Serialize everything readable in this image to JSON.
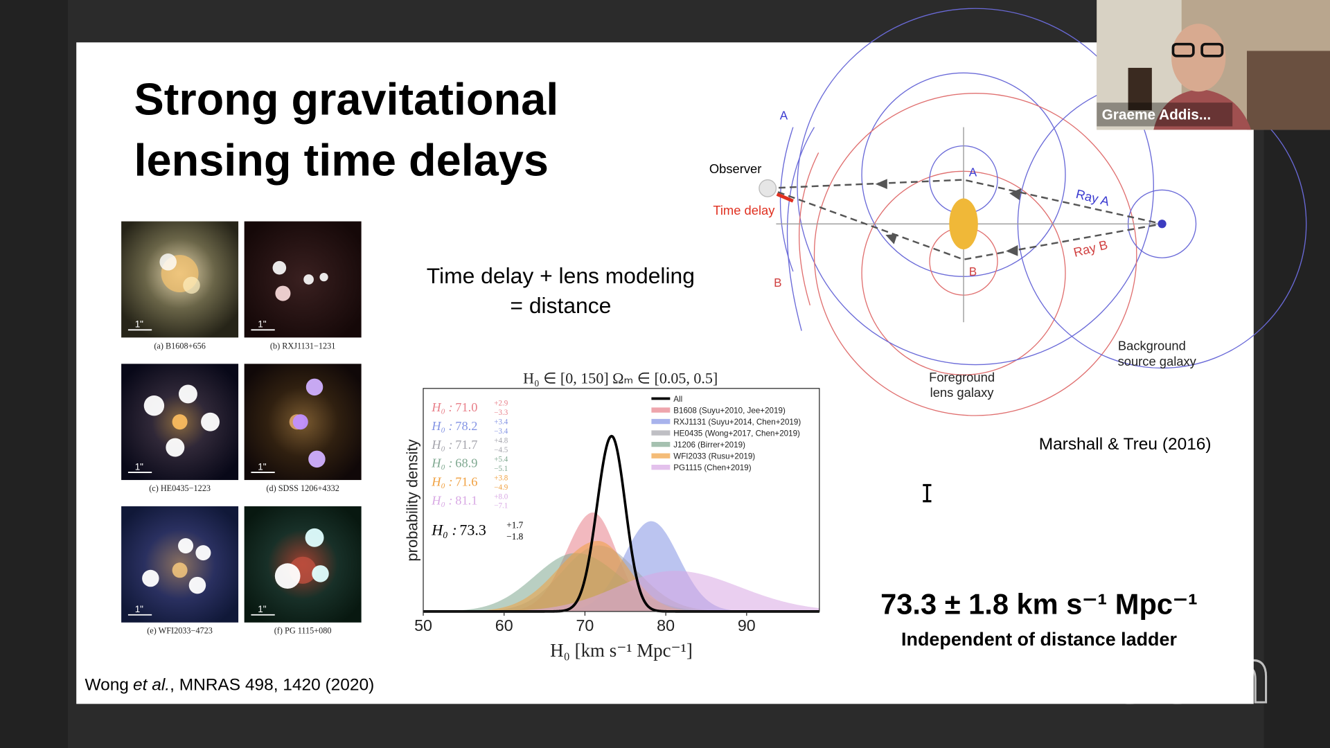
{
  "screen": {
    "presenter": "Graeme Addis...",
    "watermark": "zoom"
  },
  "slide": {
    "title_lines": [
      "Strong gravitational",
      "lensing time delays"
    ],
    "lens_images": [
      {
        "caption": "(a) B1608+656",
        "scale": "1\""
      },
      {
        "caption": "(b) RXJ1131−1231",
        "scale": "1\""
      },
      {
        "caption": "(c) HE0435−1223",
        "scale": "1\""
      },
      {
        "caption": "(d) SDSS 1206+4332",
        "scale": "1\""
      },
      {
        "caption": "(e) WFI2033−4723",
        "scale": "1\""
      },
      {
        "caption": "(f) PG 1115+080",
        "scale": "1\""
      }
    ],
    "equation_lines": [
      "Time delay + lens modeling",
      "= distance"
    ],
    "diagram": {
      "observer": "Observer",
      "time_delay": "Time delay",
      "outer_a": "A",
      "outer_b": "B",
      "image_a": "A",
      "image_b": "B",
      "ray_a": "Ray A",
      "ray_b": "Ray B",
      "lens": [
        "Foreground",
        "lens galaxy"
      ],
      "source": [
        "Background",
        "source galaxy"
      ],
      "credit": "Marshall & Treu (2016)"
    },
    "result": "73.3 ± 1.8 km s⁻¹ Mpc⁻¹",
    "result_note": "Independent of distance ladder",
    "citation": {
      "author": "Wong",
      "etal": "et al.",
      "rest": ", MNRAS 498, 1420 (2020)"
    }
  },
  "plot": {
    "type": "density",
    "title": "H₀ ∈ [0, 150]   Ωₘ ∈ [0.05, 0.5]",
    "xlabel": "H₀ [km s⁻¹ Mpc⁻¹]",
    "ylabel": "probability density",
    "h0_symbol": "H₀ :",
    "xlim": [
      50,
      99
    ],
    "ylim": [
      0,
      0.29
    ],
    "xticks": [
      50,
      60,
      70,
      80,
      90
    ],
    "series": [
      {
        "name": "All",
        "color": "#000000",
        "h0": {
          "value": 73.3,
          "label": "73.3"
        },
        "plus": {
          "value": 1.7,
          "label": "+1.7"
        },
        "minus": {
          "value": -1.8,
          "label": "−1.8"
        }
      },
      {
        "name": "B1608 (Suyu+2010, Jee+2019)",
        "color": "#e8808a",
        "h0": {
          "value": 71.0,
          "label": "71.0"
        },
        "plus": {
          "value": 2.9,
          "label": "+2.9"
        },
        "minus": {
          "value": -3.3,
          "label": "−3.3"
        }
      },
      {
        "name": "RXJ1131 (Suyu+2014, Chen+2019)",
        "color": "#8494e4",
        "h0": {
          "value": 78.2,
          "label": "78.2"
        },
        "plus": {
          "value": 3.4,
          "label": "+3.4"
        },
        "minus": {
          "value": -3.4,
          "label": "−3.4"
        }
      },
      {
        "name": "HE0435 (Wong+2017, Chen+2019)",
        "color": "#a4a4ac",
        "h0": {
          "value": 71.7,
          "label": "71.7"
        },
        "plus": {
          "value": 4.8,
          "label": "+4.8"
        },
        "minus": {
          "value": -4.5,
          "label": "−4.5"
        }
      },
      {
        "name": "J1206 (Birrer+2019)",
        "color": "#7fa890",
        "h0": {
          "value": 68.9,
          "label": "68.9"
        },
        "plus": {
          "value": 5.4,
          "label": "+5.4"
        },
        "minus": {
          "value": -5.1,
          "label": "−5.1"
        }
      },
      {
        "name": "WFI2033 (Rusu+2019)",
        "color": "#f0a040",
        "h0": {
          "value": 71.6,
          "label": "71.6"
        },
        "plus": {
          "value": 3.8,
          "label": "+3.8"
        },
        "minus": {
          "value": -4.9,
          "label": "−4.9"
        }
      },
      {
        "name": "PG1115 (Chen+2019)",
        "color": "#d8a8e4",
        "h0": {
          "value": 81.1,
          "label": "81.1"
        },
        "plus": {
          "value": 8.0,
          "label": "+8.0"
        },
        "minus": {
          "value": -7.1,
          "label": "−7.1"
        }
      }
    ]
  }
}
